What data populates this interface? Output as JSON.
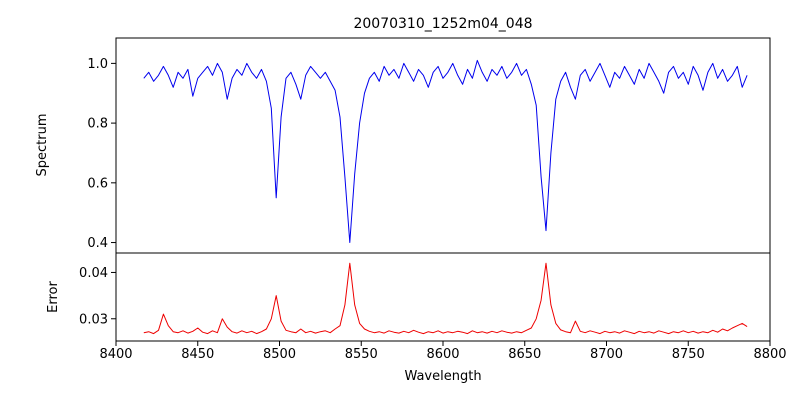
{
  "figure": {
    "title": "20070310_1252m04_048",
    "background": "#ffffff"
  },
  "chart_data": {
    "type": "line",
    "title": "20070310_1252m04_048",
    "xlabel": "Wavelength",
    "xlim": [
      8400,
      8800
    ],
    "xticks": [
      8400,
      8450,
      8500,
      8550,
      8600,
      8650,
      8700,
      8750,
      8800
    ],
    "xtick_labels": [
      "8400",
      "8450",
      "8500",
      "8550",
      "8600",
      "8650",
      "8700",
      "8750",
      "8800"
    ],
    "grid": false,
    "legend": "none",
    "x_start": 8417,
    "x_step": 3,
    "panels": [
      {
        "name": "spectrum",
        "ylabel": "Spectrum",
        "ylim": [
          0.365,
          1.085
        ],
        "yticks": [
          0.4,
          0.6,
          0.8,
          1.0
        ],
        "ytick_labels": [
          "0.4",
          "0.6",
          "0.8",
          "1.0"
        ],
        "color": "#0000ee",
        "notes": "Blue spectrum, continuum ~0.96 with noise; Ca II triplet absorption lines near 8498 (min ~0.55), 8542 (min ~0.40), 8662 (min ~0.44)",
        "y": [
          0.95,
          0.97,
          0.94,
          0.96,
          0.99,
          0.96,
          0.92,
          0.97,
          0.95,
          0.98,
          0.89,
          0.95,
          0.97,
          0.99,
          0.96,
          1.0,
          0.97,
          0.88,
          0.95,
          0.98,
          0.96,
          1.0,
          0.97,
          0.95,
          0.98,
          0.94,
          0.85,
          0.55,
          0.82,
          0.95,
          0.97,
          0.93,
          0.88,
          0.96,
          0.99,
          0.97,
          0.95,
          0.97,
          0.94,
          0.91,
          0.82,
          0.62,
          0.4,
          0.63,
          0.8,
          0.9,
          0.95,
          0.97,
          0.94,
          0.99,
          0.96,
          0.98,
          0.95,
          1.0,
          0.97,
          0.94,
          0.98,
          0.96,
          0.92,
          0.97,
          0.99,
          0.95,
          0.97,
          1.0,
          0.96,
          0.93,
          0.98,
          0.95,
          1.01,
          0.97,
          0.94,
          0.98,
          0.96,
          0.99,
          0.95,
          0.97,
          1.0,
          0.96,
          0.98,
          0.93,
          0.86,
          0.62,
          0.44,
          0.7,
          0.88,
          0.94,
          0.97,
          0.92,
          0.88,
          0.96,
          0.98,
          0.94,
          0.97,
          1.0,
          0.96,
          0.92,
          0.97,
          0.95,
          0.99,
          0.96,
          0.93,
          0.98,
          0.95,
          1.0,
          0.97,
          0.94,
          0.9,
          0.97,
          0.99,
          0.95,
          0.97,
          0.93,
          0.99,
          0.96,
          0.91,
          0.97,
          1.0,
          0.95,
          0.98,
          0.94,
          0.96,
          0.99,
          0.92,
          0.96
        ]
      },
      {
        "name": "error",
        "ylabel": "Error",
        "ylim": [
          0.0252,
          0.0442
        ],
        "yticks": [
          0.03,
          0.04
        ],
        "ytick_labels": [
          "0.03",
          "0.04"
        ],
        "color": "#ee0000",
        "notes": "Red error curve, baseline ~0.027 with spikes ~0.035 at 8498 and ~0.042 at 8542 and 8662",
        "y": [
          0.027,
          0.0272,
          0.0268,
          0.0275,
          0.031,
          0.0285,
          0.0272,
          0.027,
          0.0274,
          0.0269,
          0.0273,
          0.028,
          0.0271,
          0.0268,
          0.0274,
          0.027,
          0.03,
          0.0282,
          0.0272,
          0.0269,
          0.0274,
          0.027,
          0.0273,
          0.0268,
          0.0272,
          0.0278,
          0.03,
          0.035,
          0.0295,
          0.0275,
          0.0272,
          0.027,
          0.0278,
          0.027,
          0.0273,
          0.0269,
          0.0272,
          0.0274,
          0.027,
          0.0278,
          0.0285,
          0.033,
          0.042,
          0.033,
          0.029,
          0.0278,
          0.0273,
          0.027,
          0.0272,
          0.0269,
          0.0274,
          0.0271,
          0.0269,
          0.0273,
          0.027,
          0.0275,
          0.0271,
          0.0268,
          0.0272,
          0.027,
          0.0274,
          0.0269,
          0.0272,
          0.027,
          0.0273,
          0.0271,
          0.0268,
          0.0274,
          0.027,
          0.0272,
          0.0269,
          0.0273,
          0.027,
          0.0274,
          0.0271,
          0.0269,
          0.0272,
          0.027,
          0.0275,
          0.028,
          0.03,
          0.034,
          0.042,
          0.033,
          0.029,
          0.0276,
          0.0272,
          0.027,
          0.0295,
          0.0273,
          0.027,
          0.0274,
          0.0271,
          0.0268,
          0.0273,
          0.027,
          0.0272,
          0.0269,
          0.0274,
          0.0271,
          0.0268,
          0.0273,
          0.027,
          0.0272,
          0.0269,
          0.0274,
          0.0271,
          0.0268,
          0.0272,
          0.027,
          0.0274,
          0.027,
          0.0273,
          0.0269,
          0.0272,
          0.027,
          0.0275,
          0.0271,
          0.0278,
          0.0274,
          0.028,
          0.0285,
          0.029,
          0.0283
        ]
      }
    ]
  }
}
